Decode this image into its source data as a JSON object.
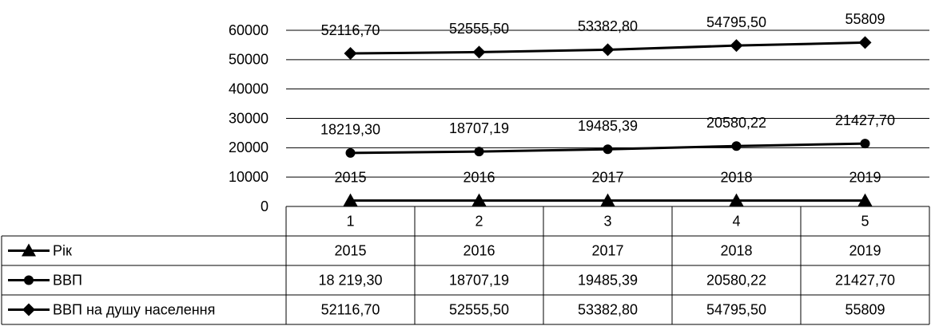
{
  "chart_data": {
    "type": "line",
    "categories": [
      "1",
      "2",
      "3",
      "4",
      "5"
    ],
    "series": [
      {
        "name": "Рік",
        "color": "#000000",
        "marker": "triangle",
        "values": [
          2015,
          2016,
          2017,
          2018,
          2019
        ]
      },
      {
        "name": "ВВП",
        "color": "#000000",
        "marker": "circle",
        "values": [
          18219.3,
          18707.19,
          19485.39,
          20580.22,
          21427.7
        ],
        "value_labels": [
          "18219,30",
          "18707,19",
          "19485,39",
          "20580,22",
          "21427,70"
        ],
        "table_labels": [
          "18 219,30",
          "18707,19",
          "19485,39",
          "20580,22",
          "21427,70"
        ]
      },
      {
        "name": "ВВП на душу населення",
        "color": "#000000",
        "marker": "diamond",
        "values": [
          52116.7,
          52555.5,
          53382.8,
          54795.5,
          55809
        ],
        "value_labels": [
          "52116,70",
          "52555,50",
          "53382,80",
          "54795,50",
          "55809"
        ]
      }
    ],
    "ylim": [
      0,
      60000
    ],
    "yticks": [
      0,
      10000,
      20000,
      30000,
      40000,
      50000,
      60000
    ],
    "grid": true
  }
}
